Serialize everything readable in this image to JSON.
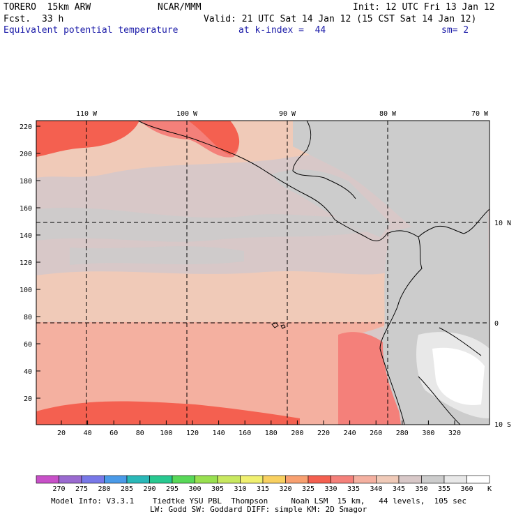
{
  "header": {
    "model": "TORERO  15km ARW",
    "center": "NCAR/MMM",
    "init": "Init: 12 UTC Fri 13 Jan 12",
    "fcst_label": "Fcst.",
    "fcst_value": "33 h",
    "valid": "Valid: 21 UTC Sat 14 Jan 12 (15 CST Sat 14 Jan 12)",
    "field": "Equivalent potential temperature",
    "level": "at k-index =  44",
    "smooth": "sm= 2"
  },
  "axes": {
    "y_ticks": [
      "220",
      "200",
      "180",
      "160",
      "140",
      "120",
      "100",
      "80",
      "60",
      "40",
      "20"
    ],
    "x_ticks": [
      "20",
      "40",
      "60",
      "80",
      "100",
      "120",
      "140",
      "160",
      "180",
      "200",
      "220",
      "240",
      "260",
      "280",
      "300",
      "320"
    ],
    "lon_labels": [
      "110 W",
      "100 W",
      "90 W",
      "80 W",
      "70 W"
    ],
    "lat_labels": [
      "10 N",
      "0",
      "10 S"
    ]
  },
  "colorbar": {
    "labels": [
      "270",
      "275",
      "280",
      "285",
      "290",
      "295",
      "300",
      "305",
      "310",
      "315",
      "320",
      "325",
      "330",
      "335",
      "340",
      "345",
      "350",
      "355",
      "360"
    ],
    "unit": "K",
    "colors": [
      "#c850c8",
      "#9a6ad0",
      "#7878e8",
      "#4a9ae8",
      "#2ab8b8",
      "#28c890",
      "#58d858",
      "#98e050",
      "#c8e860",
      "#f0f070",
      "#f8d060",
      "#f8a070",
      "#f46050",
      "#f4807a",
      "#f4b0a0",
      "#f0cab8",
      "#d8c8c8",
      "#cccccc",
      "#e8e8e8",
      "#ffffff"
    ]
  },
  "footer": {
    "line1": "Model Info: V3.3.1    Tiedtke YSU PBL  Thompson     Noah LSM  15 km,   44 levels,  105 sec",
    "line2": "LW: Godd SW: Goddard DIFF: simple KM: 2D Smagor"
  }
}
